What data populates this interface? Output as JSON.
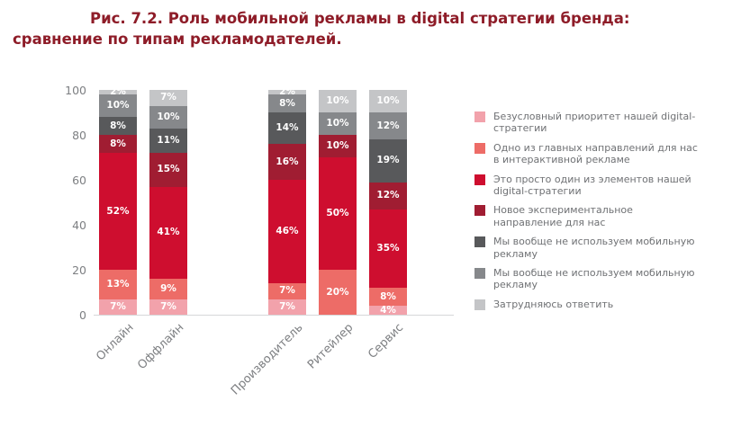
{
  "title": "Рис. 7.2. Роль мобильной рекламы в digital стратегии бренда: сравнение по типам рекламодателей.",
  "chart_data": {
    "type": "bar",
    "stacked": true,
    "title": "Рис. 7.2. Роль мобильной рекламы в digital стратегии бренда: сравнение по типам рекламодателей.",
    "categories": [
      "Онлайн",
      "Оффлайн",
      "Производитель",
      "Ритейлер",
      "Сервис"
    ],
    "group_gap_before": [
      2
    ],
    "ylim": [
      0,
      100
    ],
    "yticks": [
      0,
      20,
      40,
      60,
      80,
      100
    ],
    "grid": false,
    "legend_position": "right",
    "series": [
      {
        "name": "Безусловный приоритет нашей digital-стратегии",
        "color": "#f2a2ab",
        "values": [
          7,
          7,
          7,
          0,
          4
        ]
      },
      {
        "name": "Одно из главных направлений для нас в интерактивной рекламе",
        "color": "#ed6c67",
        "values": [
          13,
          9,
          7,
          20,
          8
        ]
      },
      {
        "name": "Это просто один из элементов нашей digital-стратегии",
        "color": "#ce0e2f",
        "values": [
          52,
          41,
          46,
          50,
          35
        ]
      },
      {
        "name": "Новое экспериментальное направление для нас",
        "color": "#a01d32",
        "values": [
          8,
          15,
          16,
          10,
          12
        ]
      },
      {
        "name": "Мы вообще не используем мобильную рекламу",
        "color": "#58595b",
        "values": [
          8,
          11,
          14,
          0,
          19
        ]
      },
      {
        "name": "Мы вообще не используем мобильную рекламу",
        "color": "#86888b",
        "values": [
          10,
          10,
          8,
          10,
          12
        ]
      },
      {
        "name": "Затрудняюсь ответить",
        "color": "#c4c5c7",
        "values": [
          2,
          7,
          2,
          10,
          10
        ]
      }
    ]
  }
}
